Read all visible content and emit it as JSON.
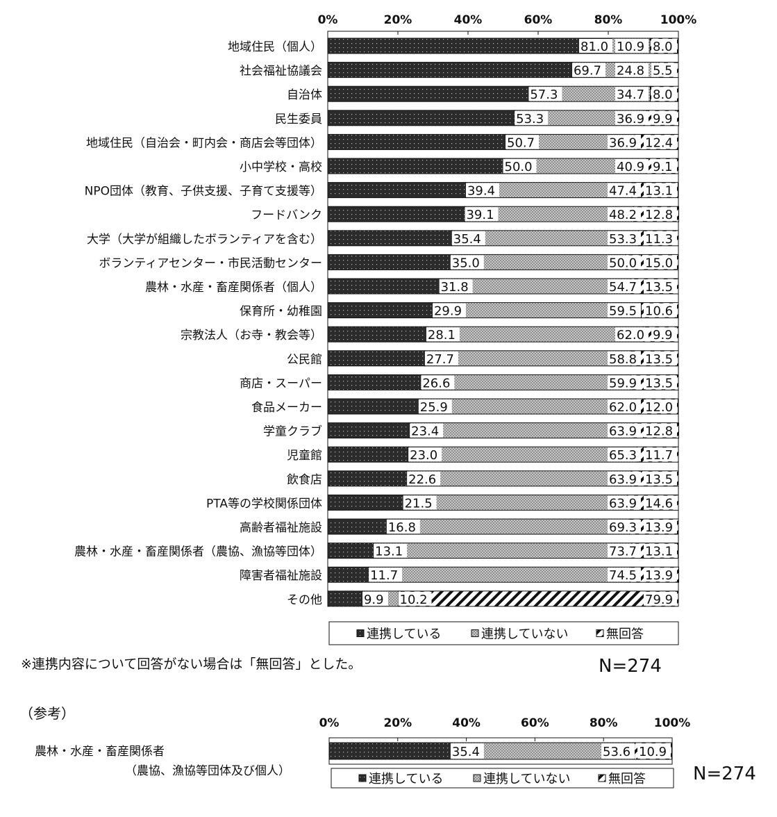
{
  "chart_data": [
    {
      "type": "bar",
      "orientation": "horizontal-stacked-100",
      "title": "",
      "xlim": [
        0,
        100
      ],
      "xticks": [
        "0%",
        "20%",
        "40%",
        "60%",
        "80%",
        "100%"
      ],
      "categories": [
        "地域住民（個人）",
        "社会福祉協議会",
        "自治体",
        "民生委員",
        "地域住民（自治会・町内会・商店会等団体）",
        "小中学校・高校",
        "NPO団体（教育、子供支援、子育て支援等）",
        "フードバンク",
        "大学（大学が組織したボランティアを含む）",
        "ボランティアセンター・市民活動センター",
        "農林・水産・畜産関係者（個人）",
        "保育所・幼稚園",
        "宗教法人（お寺・教会等）",
        "公民館",
        "商店・スーパー",
        "食品メーカー",
        "学童クラブ",
        "児童館",
        "飲食店",
        "PTA等の学校関係団体",
        "高齢者福祉施設",
        "農林・水産・畜産関係者（農協、漁協等団体）",
        "障害者福祉施設",
        "その他"
      ],
      "series": [
        {
          "name": "連携している",
          "values": [
            81.0,
            69.7,
            57.3,
            53.3,
            50.7,
            50.0,
            39.4,
            39.1,
            35.4,
            35.0,
            31.8,
            29.9,
            28.1,
            27.7,
            26.6,
            25.9,
            23.4,
            23.0,
            22.6,
            21.5,
            16.8,
            13.1,
            11.7,
            9.9
          ]
        },
        {
          "name": "連携していない",
          "values": [
            10.9,
            24.8,
            34.7,
            36.9,
            36.9,
            40.9,
            47.4,
            48.2,
            53.3,
            50.0,
            54.7,
            59.5,
            62.0,
            58.8,
            59.9,
            62.0,
            63.9,
            65.3,
            63.9,
            63.9,
            69.3,
            73.7,
            74.5,
            10.2
          ]
        },
        {
          "name": "無回答",
          "values": [
            8.0,
            5.5,
            8.0,
            9.9,
            12.4,
            9.1,
            13.1,
            12.8,
            11.3,
            15.0,
            13.5,
            10.6,
            9.9,
            13.5,
            13.5,
            12.0,
            12.8,
            11.7,
            13.5,
            14.6,
            13.9,
            13.1,
            13.9,
            79.9
          ]
        }
      ],
      "legend": [
        "連携している",
        "連携していない",
        "無回答"
      ],
      "legend_position": "bottom",
      "note": "※連携内容について回答がない場合は「無回答」とした。",
      "n_label": "N=274"
    },
    {
      "type": "bar",
      "orientation": "horizontal-stacked-100",
      "section_label": "（参考）",
      "xlim": [
        0,
        100
      ],
      "xticks": [
        "0%",
        "20%",
        "40%",
        "60%",
        "80%",
        "100%"
      ],
      "categories": [
        "農林・水産・畜産関係者"
      ],
      "category_sublabel": "（農協、漁協等団体及び個人）",
      "series": [
        {
          "name": "連携している",
          "values": [
            35.4
          ]
        },
        {
          "name": "連携していない",
          "values": [
            53.6
          ]
        },
        {
          "name": "無回答",
          "values": [
            10.9
          ]
        }
      ],
      "legend": [
        "連携している",
        "連携していない",
        "無回答"
      ],
      "legend_position": "bottom",
      "n_label": "N=274"
    }
  ],
  "colors": {
    "connected": "#2b2b2b",
    "not_connected": "#9a9a9a",
    "no_answer": "#ffffff"
  }
}
